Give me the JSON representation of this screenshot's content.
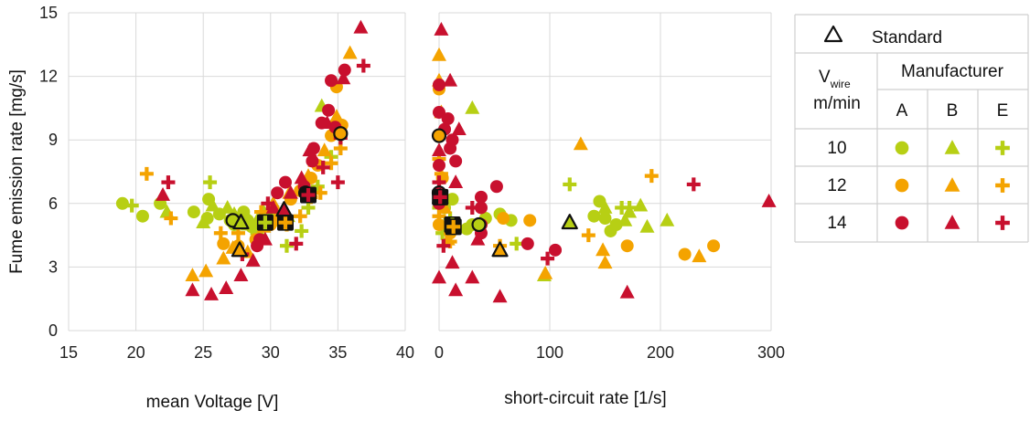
{
  "colors": {
    "10": "#b7cf14",
    "12": "#f4a300",
    "14": "#c8102e",
    "grid": "#d9d9d9",
    "std_fill": "#b7cf14"
  },
  "chart_data": [
    {
      "type": "scatter",
      "panel": "voltage",
      "xlabel": "mean Voltage [V]",
      "ylabel": "Fume emission rate [mg/s]",
      "xlim": [
        15,
        40
      ],
      "ylim": [
        0,
        15
      ],
      "xticks": [
        "15",
        "20",
        "25",
        "30",
        "35",
        "40"
      ],
      "yticks": [
        "0",
        "3",
        "6",
        "9",
        "12",
        "15"
      ],
      "grid": true,
      "series": [
        {
          "manufacturer": "A",
          "vwire": "10",
          "marker": "circle",
          "points": [
            [
              19.0,
              6.0
            ],
            [
              20.5,
              5.4
            ],
            [
              21.8,
              6.0
            ],
            [
              24.3,
              5.6
            ],
            [
              25.3,
              5.3
            ],
            [
              25.4,
              6.2
            ],
            [
              26.2,
              5.5
            ],
            [
              27.0,
              5.2
            ],
            [
              27.3,
              5.0
            ],
            [
              28.0,
              5.6
            ],
            [
              28.3,
              5.2
            ],
            [
              28.6,
              4.9
            ],
            [
              29.0,
              4.7
            ],
            [
              29.8,
              5.5
            ],
            [
              30.3,
              5.2
            ],
            [
              31.0,
              5.2
            ]
          ]
        },
        {
          "manufacturer": "B",
          "vwire": "10",
          "marker": "triangle",
          "points": [
            [
              22.3,
              5.6
            ],
            [
              25.0,
              5.1
            ],
            [
              25.7,
              5.9
            ],
            [
              26.8,
              5.8
            ],
            [
              27.3,
              5.5
            ],
            [
              28.3,
              5.0
            ],
            [
              29.0,
              5.2
            ],
            [
              29.5,
              5.6
            ],
            [
              30.0,
              5.3
            ],
            [
              30.6,
              5.2
            ],
            [
              31.3,
              5.4
            ],
            [
              33.8,
              10.6
            ]
          ]
        },
        {
          "manufacturer": "E",
          "vwire": "10",
          "marker": "plus",
          "points": [
            [
              19.7,
              5.9
            ],
            [
              25.5,
              7.0
            ],
            [
              28.0,
              5.4
            ],
            [
              29.0,
              4.6
            ],
            [
              29.5,
              5.4
            ],
            [
              30.5,
              5.6
            ],
            [
              31.2,
              4.0
            ],
            [
              32.3,
              4.7
            ],
            [
              32.8,
              5.8
            ],
            [
              33.5,
              6.8
            ],
            [
              34.5,
              8.2
            ]
          ]
        },
        {
          "manufacturer": "A",
          "vwire": "12",
          "marker": "circle",
          "points": [
            [
              26.5,
              4.1
            ],
            [
              27.6,
              4.0
            ],
            [
              28.9,
              4.3
            ],
            [
              30.0,
              5.0
            ],
            [
              30.8,
              5.3
            ],
            [
              31.5,
              6.2
            ],
            [
              32.2,
              6.6
            ],
            [
              33.0,
              7.2
            ],
            [
              33.5,
              7.8
            ],
            [
              34.5,
              9.2
            ],
            [
              34.9,
              11.5
            ],
            [
              35.3,
              9.7
            ]
          ]
        },
        {
          "manufacturer": "B",
          "vwire": "12",
          "marker": "triangle",
          "points": [
            [
              24.2,
              2.6
            ],
            [
              25.2,
              2.8
            ],
            [
              26.5,
              3.4
            ],
            [
              27.2,
              3.9
            ],
            [
              28.3,
              3.7
            ],
            [
              29.5,
              4.9
            ],
            [
              30.2,
              6.0
            ],
            [
              31.4,
              6.5
            ],
            [
              32.8,
              7.3
            ],
            [
              33.3,
              8.0
            ],
            [
              34.0,
              8.5
            ],
            [
              34.9,
              10.1
            ],
            [
              35.9,
              13.1
            ]
          ]
        },
        {
          "manufacturer": "E",
          "vwire": "12",
          "marker": "plus",
          "points": [
            [
              20.8,
              7.4
            ],
            [
              22.6,
              5.3
            ],
            [
              26.3,
              4.6
            ],
            [
              27.6,
              4.6
            ],
            [
              29.3,
              5.6
            ],
            [
              30.4,
              5.3
            ],
            [
              31.2,
              5.0
            ],
            [
              32.2,
              5.4
            ],
            [
              33.0,
              6.3
            ],
            [
              33.7,
              6.5
            ],
            [
              34.5,
              7.9
            ],
            [
              35.2,
              8.6
            ]
          ]
        },
        {
          "manufacturer": "A",
          "vwire": "14",
          "marker": "circle",
          "points": [
            [
              29.0,
              4.0
            ],
            [
              29.2,
              4.3
            ],
            [
              30.5,
              6.5
            ],
            [
              31.1,
              7.0
            ],
            [
              32.5,
              6.8
            ],
            [
              33.1,
              8.0
            ],
            [
              33.2,
              8.6
            ],
            [
              33.8,
              9.8
            ],
            [
              34.3,
              10.4
            ],
            [
              34.5,
              11.8
            ],
            [
              34.8,
              9.6
            ],
            [
              35.5,
              12.3
            ]
          ]
        },
        {
          "manufacturer": "B",
          "vwire": "14",
          "marker": "triangle",
          "points": [
            [
              22.0,
              6.4
            ],
            [
              24.2,
              1.9
            ],
            [
              25.6,
              1.7
            ],
            [
              26.7,
              2.0
            ],
            [
              27.8,
              2.6
            ],
            [
              28.7,
              3.3
            ],
            [
              29.6,
              4.3
            ],
            [
              30.2,
              5.8
            ],
            [
              31.5,
              6.5
            ],
            [
              32.3,
              7.2
            ],
            [
              32.9,
              8.5
            ],
            [
              34.2,
              9.8
            ],
            [
              35.4,
              11.9
            ],
            [
              36.7,
              14.3
            ]
          ]
        },
        {
          "manufacturer": "E",
          "vwire": "14",
          "marker": "plus",
          "points": [
            [
              22.4,
              7.0
            ],
            [
              27.9,
              3.6
            ],
            [
              29.8,
              6.0
            ],
            [
              31.9,
              4.1
            ],
            [
              33.9,
              7.7
            ],
            [
              35.0,
              7.0
            ],
            [
              35.2,
              9.1
            ],
            [
              36.9,
              12.5
            ]
          ]
        }
      ],
      "standard": [
        {
          "vwire": "10",
          "marker": "circle",
          "x": 27.2,
          "y": 5.2
        },
        {
          "vwire": "10",
          "marker": "triangle",
          "x": 27.8,
          "y": 5.1
        },
        {
          "vwire": "10",
          "marker": "plus",
          "x": 29.6,
          "y": 5.1
        },
        {
          "vwire": "12",
          "marker": "circle",
          "x": 35.2,
          "y": 9.3
        },
        {
          "vwire": "12",
          "marker": "triangle",
          "x": 27.7,
          "y": 3.8
        },
        {
          "vwire": "12",
          "marker": "plus",
          "x": 31.1,
          "y": 5.1
        },
        {
          "vwire": "14",
          "marker": "circle",
          "x": 32.6,
          "y": 6.5
        },
        {
          "vwire": "14",
          "marker": "triangle",
          "x": 31.0,
          "y": 5.7
        },
        {
          "vwire": "14",
          "marker": "plus",
          "x": 32.8,
          "y": 6.4
        }
      ]
    },
    {
      "type": "scatter",
      "panel": "short-circuit",
      "xlabel": "short-circuit rate [1/s]",
      "ylabel": "",
      "xlim": [
        0,
        300
      ],
      "ylim": [
        0,
        15
      ],
      "xticks": [
        "0",
        "100",
        "200",
        "300"
      ],
      "yticks": [],
      "grid": true,
      "series": [
        {
          "manufacturer": "A",
          "vwire": "10",
          "marker": "circle",
          "points": [
            [
              5,
              5.8
            ],
            [
              12,
              6.2
            ],
            [
              25,
              4.8
            ],
            [
              30,
              5.0
            ],
            [
              42,
              5.3
            ],
            [
              55,
              5.5
            ],
            [
              65,
              5.2
            ],
            [
              140,
              5.4
            ],
            [
              145,
              6.1
            ],
            [
              150,
              5.3
            ],
            [
              155,
              4.7
            ],
            [
              160,
              5.0
            ]
          ]
        },
        {
          "manufacturer": "B",
          "vwire": "10",
          "marker": "triangle",
          "points": [
            [
              30,
              10.5
            ],
            [
              95,
              2.6
            ],
            [
              150,
              5.8
            ],
            [
              168,
              5.2
            ],
            [
              172,
              5.6
            ],
            [
              182,
              5.9
            ],
            [
              188,
              4.9
            ],
            [
              206,
              5.2
            ]
          ]
        },
        {
          "manufacturer": "E",
          "vwire": "10",
          "marker": "plus",
          "points": [
            [
              0,
              5.8
            ],
            [
              3,
              4.6
            ],
            [
              10,
              5.3
            ],
            [
              70,
              4.1
            ],
            [
              118,
              6.9
            ],
            [
              165,
              5.8
            ],
            [
              172,
              5.8
            ]
          ]
        },
        {
          "manufacturer": "A",
          "vwire": "12",
          "marker": "circle",
          "points": [
            [
              0,
              5.0
            ],
            [
              0,
              6.5
            ],
            [
              0,
              11.4
            ],
            [
              3,
              7.2
            ],
            [
              10,
              4.6
            ],
            [
              58,
              5.3
            ],
            [
              82,
              5.2
            ],
            [
              170,
              4.0
            ],
            [
              222,
              3.6
            ],
            [
              248,
              4.0
            ]
          ]
        },
        {
          "manufacturer": "B",
          "vwire": "12",
          "marker": "triangle",
          "points": [
            [
              0,
              13.0
            ],
            [
              0,
              11.8
            ],
            [
              2,
              10.3
            ],
            [
              5,
              5.8
            ],
            [
              8,
              4.3
            ],
            [
              96,
              2.7
            ],
            [
              128,
              8.8
            ],
            [
              148,
              3.8
            ],
            [
              150,
              3.2
            ],
            [
              235,
              3.5
            ]
          ]
        },
        {
          "manufacturer": "E",
          "vwire": "12",
          "marker": "plus",
          "points": [
            [
              0,
              8.1
            ],
            [
              0,
              5.4
            ],
            [
              2,
              7.4
            ],
            [
              10,
              4.2
            ],
            [
              55,
              4.0
            ],
            [
              135,
              4.5
            ],
            [
              192,
              7.3
            ]
          ]
        },
        {
          "manufacturer": "A",
          "vwire": "14",
          "marker": "circle",
          "points": [
            [
              0,
              11.6
            ],
            [
              0,
              10.3
            ],
            [
              0,
              7.8
            ],
            [
              0,
              6.0
            ],
            [
              5,
              9.5
            ],
            [
              8,
              10.0
            ],
            [
              10,
              8.6
            ],
            [
              12,
              9.0
            ],
            [
              15,
              8.0
            ],
            [
              38,
              5.0
            ],
            [
              38,
              5.8
            ],
            [
              38,
              6.3
            ],
            [
              38,
              4.6
            ],
            [
              52,
              6.8
            ],
            [
              80,
              4.1
            ],
            [
              105,
              3.8
            ]
          ]
        },
        {
          "manufacturer": "B",
          "vwire": "14",
          "marker": "triangle",
          "points": [
            [
              2,
              14.2
            ],
            [
              0,
              8.5
            ],
            [
              0,
              2.5
            ],
            [
              10,
              11.8
            ],
            [
              12,
              3.2
            ],
            [
              15,
              7.0
            ],
            [
              15,
              1.9
            ],
            [
              18,
              9.5
            ],
            [
              30,
              2.5
            ],
            [
              35,
              4.3
            ],
            [
              55,
              1.6
            ],
            [
              170,
              1.8
            ],
            [
              298,
              6.1
            ]
          ]
        },
        {
          "manufacturer": "E",
          "vwire": "14",
          "marker": "plus",
          "points": [
            [
              0,
              7.0
            ],
            [
              4,
              4.0
            ],
            [
              30,
              5.8
            ],
            [
              98,
              3.4
            ],
            [
              230,
              6.9
            ]
          ]
        }
      ],
      "standard": [
        {
          "vwire": "10",
          "marker": "circle",
          "x": 36,
          "y": 5.0
        },
        {
          "vwire": "10",
          "marker": "triangle",
          "x": 118,
          "y": 5.1
        },
        {
          "vwire": "10",
          "marker": "plus",
          "x": 12,
          "y": 5.0
        },
        {
          "vwire": "12",
          "marker": "circle",
          "x": 0,
          "y": 9.2
        },
        {
          "vwire": "12",
          "marker": "triangle",
          "x": 55,
          "y": 3.8
        },
        {
          "vwire": "12",
          "marker": "plus",
          "x": 13,
          "y": 4.9
        },
        {
          "vwire": "14",
          "marker": "circle",
          "x": 0,
          "y": 6.5
        },
        {
          "vwire": "14",
          "marker": "triangle",
          "x": 1,
          "y": 6.3
        },
        {
          "vwire": "14",
          "marker": "plus",
          "x": 1,
          "y": 6.3
        }
      ]
    }
  ],
  "legend": {
    "standard_label": "Standard",
    "vwire_main": "V",
    "vwire_sub": "wire",
    "vwire_unit": "m/min",
    "manufacturer_label": "Manufacturer",
    "manufacturers": [
      "A",
      "B",
      "E"
    ],
    "rows": [
      "10",
      "12",
      "14"
    ]
  }
}
